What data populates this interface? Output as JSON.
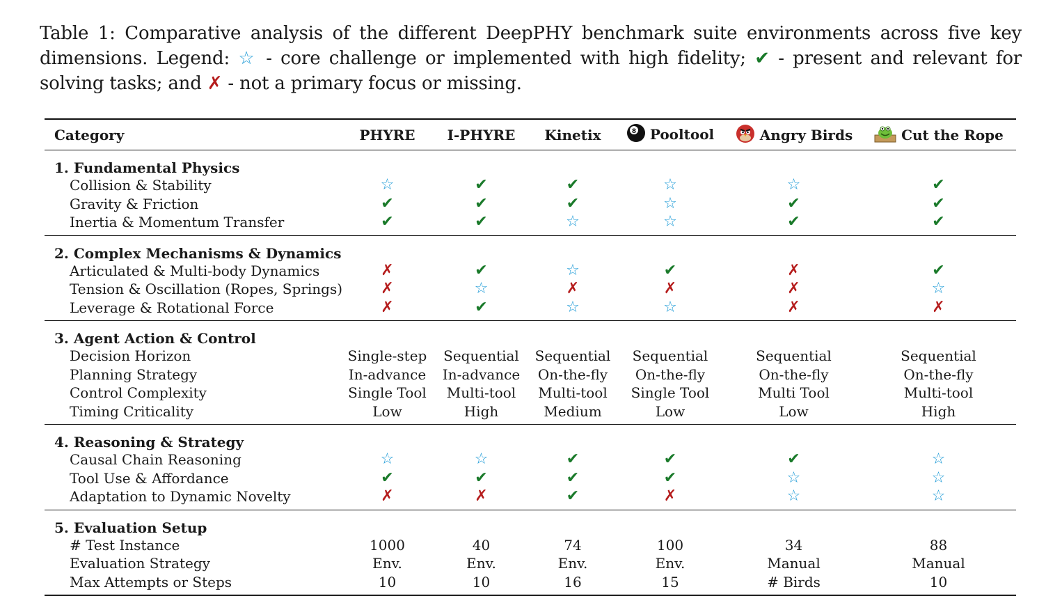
{
  "caption": {
    "p1": "Table 1:  Comparative analysis of the different DeepPHY benchmark suite environments across five key dimensions. Legend: ",
    "star": "☆",
    "p2": " - core challenge or implemented with high fidelity; ",
    "check": "✔",
    "p3": " - present and relevant for solving tasks; and ",
    "cross": "✗",
    "p4": " - not a primary focus or missing."
  },
  "header": {
    "category": "Category",
    "cols": [
      "PHYRE",
      "I-PHYRE",
      "Kinetix",
      "Pooltool",
      "Angry Birds",
      "Cut the Rope"
    ],
    "icons": [
      "",
      "",
      "",
      "billiard-8-ball-icon",
      "angry-bird-icon",
      "cut-the-rope-om-nom-icon"
    ]
  },
  "symbols": {
    "S": "☆",
    "C": "✔",
    "X": "✗"
  },
  "sections": [
    {
      "title": "1.  Fundamental Physics",
      "rows": [
        {
          "label": "Collision & Stability",
          "values": [
            "S",
            "C",
            "C",
            "S",
            "S",
            "C"
          ]
        },
        {
          "label": "Gravity & Friction",
          "values": [
            "C",
            "C",
            "C",
            "S",
            "C",
            "C"
          ]
        },
        {
          "label": "Inertia & Momentum Transfer",
          "values": [
            "C",
            "C",
            "S",
            "S",
            "C",
            "C"
          ]
        }
      ]
    },
    {
      "title": "2.  Complex Mechanisms & Dynamics",
      "rows": [
        {
          "label": "Articulated & Multi-body Dynamics",
          "values": [
            "X",
            "C",
            "S",
            "C",
            "X",
            "C"
          ]
        },
        {
          "label": "Tension & Oscillation (Ropes, Springs)",
          "values": [
            "X",
            "S",
            "X",
            "X",
            "X",
            "S"
          ]
        },
        {
          "label": "Leverage & Rotational Force",
          "values": [
            "X",
            "C",
            "S",
            "S",
            "X",
            "X"
          ]
        }
      ]
    },
    {
      "title": "3.  Agent Action & Control",
      "rows": [
        {
          "label": "Decision Horizon",
          "values": [
            "Single-step",
            "Sequential",
            "Sequential",
            "Sequential",
            "Sequential",
            "Sequential"
          ]
        },
        {
          "label": "Planning Strategy",
          "values": [
            "In-advance",
            "In-advance",
            "On-the-fly",
            "On-the-fly",
            "On-the-fly",
            "On-the-fly"
          ]
        },
        {
          "label": "Control Complexity",
          "values": [
            "Single Tool",
            "Multi-tool",
            "Multi-tool",
            "Single Tool",
            "Multi Tool",
            "Multi-tool"
          ]
        },
        {
          "label": "Timing Criticality",
          "values": [
            "Low",
            "High",
            "Medium",
            "Low",
            "Low",
            "High"
          ]
        }
      ]
    },
    {
      "title": "4.  Reasoning & Strategy",
      "rows": [
        {
          "label": "Causal Chain Reasoning",
          "values": [
            "S",
            "S",
            "C",
            "C",
            "C",
            "S"
          ]
        },
        {
          "label": "Tool Use & Affordance",
          "values": [
            "C",
            "C",
            "C",
            "C",
            "S",
            "S"
          ]
        },
        {
          "label": "Adaptation to Dynamic Novelty",
          "values": [
            "X",
            "X",
            "C",
            "X",
            "S",
            "S"
          ]
        }
      ]
    },
    {
      "title": "5.  Evaluation Setup",
      "rows": [
        {
          "label": "# Test Instance",
          "values": [
            "1000",
            "40",
            "74",
            "100",
            "34",
            "88"
          ]
        },
        {
          "label": "Evaluation Strategy",
          "values": [
            "Env.",
            "Env.",
            "Env.",
            "Env.",
            "Manual",
            "Manual"
          ]
        },
        {
          "label": "Max Attempts or Steps",
          "values": [
            "10",
            "10",
            "16",
            "15",
            "# Birds",
            "10"
          ]
        }
      ]
    }
  ],
  "colors": {
    "star": "#1e9bd7",
    "check": "#1a7a2a",
    "cross": "#b51c1c"
  }
}
